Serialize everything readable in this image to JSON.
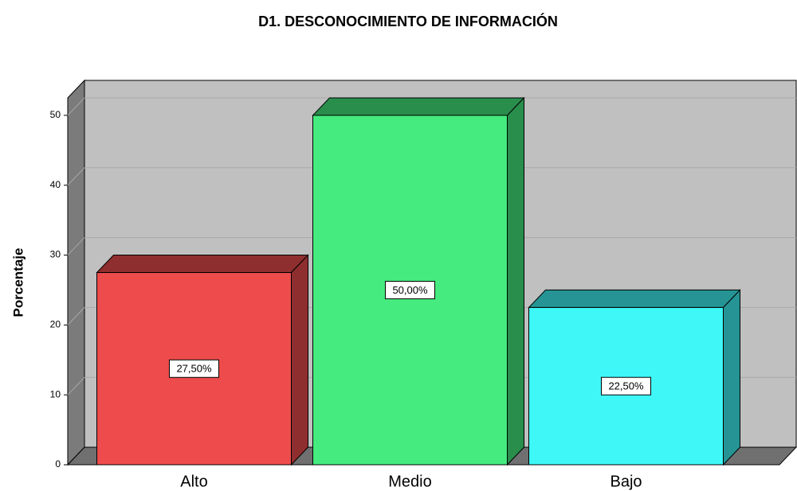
{
  "chart_data": {
    "type": "bar3d",
    "title": "D1. DESCONOCIMIENTO DE INFORMACIÓN",
    "y_label": "Porcentaje",
    "categories": [
      "Alto",
      "Medio",
      "Bajo"
    ],
    "values": [
      27.5,
      50,
      22.5
    ],
    "value_labels": [
      "27,50%",
      "50,00%",
      "22,50%"
    ],
    "colors": [
      "#ee4c4c",
      "#45eb7f",
      "#3ff7f7"
    ],
    "ylim": [
      0,
      52.5
    ],
    "yticks": [
      0,
      10,
      20,
      30,
      40,
      50
    ],
    "grid": true
  }
}
